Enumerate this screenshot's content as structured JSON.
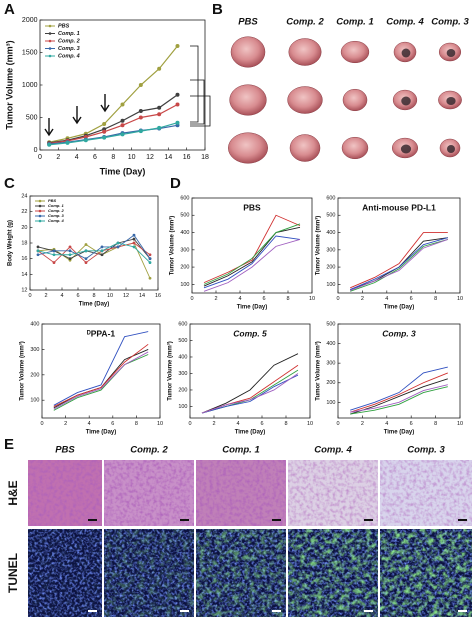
{
  "panels": [
    "A",
    "B",
    "C",
    "D",
    "E"
  ],
  "chart_data": [
    {
      "type": "line",
      "xlabel": "Time (Day)",
      "ylabel": "Tumor Volume (mm³)",
      "legend": "upper left",
      "markers": true,
      "x": [
        1,
        3,
        5,
        7,
        9,
        11,
        13,
        15
      ],
      "xlim": [
        0,
        18
      ],
      "xticks": [
        0,
        2,
        4,
        6,
        8,
        10,
        12,
        14,
        16,
        18
      ],
      "ylim": [
        0,
        2000
      ],
      "yticks": [
        0,
        500,
        1000,
        1500,
        2000
      ],
      "series": [
        {
          "name": "PBS",
          "color": "#a0a040",
          "values": [
            120,
            180,
            250,
            400,
            700,
            1000,
            1250,
            1600
          ]
        },
        {
          "name": "Comp. 1",
          "color": "#404040",
          "values": [
            110,
            150,
            220,
            320,
            450,
            600,
            650,
            850
          ]
        },
        {
          "name": "Comp. 2",
          "color": "#c84848",
          "values": [
            100,
            140,
            200,
            280,
            380,
            500,
            550,
            700
          ]
        },
        {
          "name": "Comp. 3",
          "color": "#3868a8",
          "values": [
            90,
            120,
            160,
            200,
            260,
            300,
            330,
            380
          ]
        },
        {
          "name": "Comp. 4",
          "color": "#30a8a0",
          "values": [
            80,
            110,
            150,
            190,
            240,
            290,
            340,
            420
          ]
        }
      ]
    },
    {
      "type": "line",
      "xlabel": "Time (Day)",
      "ylabel": "Body Weight (g)",
      "legend": "upper left",
      "markers": true,
      "x": [
        1,
        3,
        5,
        7,
        9,
        11,
        13,
        15
      ],
      "xlim": [
        0,
        16
      ],
      "xticks": [
        0,
        2,
        4,
        6,
        8,
        10,
        12,
        14,
        16
      ],
      "ylim": [
        12,
        24
      ],
      "yticks": [
        12,
        14,
        16,
        18,
        20,
        22,
        24
      ],
      "series": [
        {
          "name": "PBS",
          "color": "#a0a040",
          "values": [
            17,
            17.2,
            15.8,
            17.8,
            16.5,
            17.5,
            18,
            13.5
          ]
        },
        {
          "name": "Comp. 1",
          "color": "#404040",
          "values": [
            17.5,
            17,
            16,
            17,
            16.5,
            18,
            18.5,
            16
          ]
        },
        {
          "name": "Comp. 2",
          "color": "#c84848",
          "values": [
            17,
            15.5,
            17.5,
            15.5,
            17,
            17.5,
            18,
            16.5
          ]
        },
        {
          "name": "Comp. 3",
          "color": "#3868a8",
          "values": [
            16.5,
            17,
            17,
            16,
            17.5,
            17.5,
            19,
            16
          ]
        },
        {
          "name": "Comp. 4",
          "color": "#30a8a0",
          "values": [
            17,
            16.5,
            16.5,
            17,
            17,
            18,
            17.5,
            15.5
          ]
        }
      ]
    },
    {
      "type": "line",
      "title": "PBS",
      "xlabel": "Time (Day)",
      "ylabel": "Tumor Volume (mm³)",
      "x": [
        1,
        3,
        5,
        7,
        9
      ],
      "xlim": [
        0,
        10
      ],
      "xticks": [
        0,
        2,
        4,
        6,
        8,
        10
      ],
      "ylim": [
        50,
        600
      ],
      "yticks": [
        100,
        200,
        300,
        400,
        500,
        600
      ],
      "series": [
        {
          "color": "#222222",
          "values": [
            90,
            150,
            230,
            400,
            430
          ]
        },
        {
          "color": "#d03030",
          "values": [
            110,
            170,
            240,
            500,
            440
          ]
        },
        {
          "color": "#30a040",
          "values": [
            100,
            160,
            250,
            400,
            450
          ]
        },
        {
          "color": "#3050c0",
          "values": [
            80,
            130,
            220,
            380,
            360
          ]
        },
        {
          "color": "#a060c0",
          "values": [
            60,
            110,
            200,
            320,
            360
          ]
        }
      ]
    },
    {
      "type": "line",
      "title": "Anti-mouse PD-L1",
      "xlabel": "Time (Day)",
      "ylabel": "Tumor Volume (mm³)",
      "x": [
        1,
        3,
        5,
        7,
        9
      ],
      "xlim": [
        0,
        10
      ],
      "xticks": [
        0,
        2,
        4,
        6,
        8,
        10
      ],
      "ylim": [
        50,
        600
      ],
      "yticks": [
        100,
        200,
        300,
        400,
        500,
        600
      ],
      "series": [
        {
          "color": "#222222",
          "values": [
            70,
            120,
            200,
            350,
            370
          ]
        },
        {
          "color": "#d03030",
          "values": [
            80,
            140,
            220,
            400,
            400
          ]
        },
        {
          "color": "#30a040",
          "values": [
            60,
            110,
            190,
            320,
            360
          ]
        },
        {
          "color": "#3050c0",
          "values": [
            70,
            130,
            200,
            330,
            370
          ]
        },
        {
          "color": "#a060c0",
          "values": [
            65,
            120,
            180,
            310,
            360
          ]
        }
      ]
    },
    {
      "type": "line",
      "title": "ᴰPPA-1",
      "xlabel": "Time (Day)",
      "ylabel": "Tumor Volume (mm³)",
      "x": [
        1,
        3,
        5,
        7,
        9
      ],
      "xlim": [
        0,
        10
      ],
      "xticks": [
        0,
        2,
        4,
        6,
        8,
        10
      ],
      "ylim": [
        30,
        400
      ],
      "yticks": [
        100,
        200,
        300,
        400
      ],
      "series": [
        {
          "color": "#222222",
          "values": [
            70,
            120,
            150,
            260,
            300
          ]
        },
        {
          "color": "#3050c0",
          "values": [
            80,
            130,
            160,
            350,
            370
          ]
        },
        {
          "color": "#30a040",
          "values": [
            60,
            110,
            140,
            240,
            280
          ]
        },
        {
          "color": "#d03030",
          "values": [
            75,
            120,
            150,
            250,
            320
          ]
        },
        {
          "color": "#a060c0",
          "values": [
            65,
            115,
            145,
            240,
            290
          ]
        }
      ]
    },
    {
      "type": "line",
      "title": "Comp. 5",
      "xlabel": "Time (Day)",
      "ylabel": "Tumor Volume (mm³)",
      "x": [
        1,
        3,
        5,
        7,
        9
      ],
      "xlim": [
        0,
        10
      ],
      "xticks": [
        0,
        2,
        4,
        6,
        8,
        10
      ],
      "ylim": [
        30,
        600
      ],
      "yticks": [
        100,
        200,
        300,
        400,
        500,
        600
      ],
      "series": [
        {
          "color": "#222222",
          "values": [
            60,
            120,
            200,
            350,
            420
          ]
        },
        {
          "color": "#d03030",
          "values": [
            60,
            110,
            150,
            250,
            350
          ]
        },
        {
          "color": "#30a040",
          "values": [
            60,
            100,
            140,
            230,
            320
          ]
        },
        {
          "color": "#3050c0",
          "values": [
            60,
            100,
            130,
            220,
            290
          ]
        },
        {
          "color": "#a060c0",
          "values": [
            60,
            110,
            140,
            200,
            300
          ]
        }
      ]
    },
    {
      "type": "line",
      "title": "Comp. 3",
      "xlabel": "Time (Day)",
      "ylabel": "Tumor Volume (mm³)",
      "x": [
        1,
        3,
        5,
        7,
        9
      ],
      "xlim": [
        0,
        10
      ],
      "xticks": [
        0,
        2,
        4,
        6,
        8,
        10
      ],
      "ylim": [
        20,
        500
      ],
      "yticks": [
        100,
        200,
        300,
        400,
        500
      ],
      "series": [
        {
          "color": "#3050c0",
          "values": [
            60,
            100,
            150,
            250,
            280
          ]
        },
        {
          "color": "#d03030",
          "values": [
            50,
            90,
            140,
            200,
            250
          ]
        },
        {
          "color": "#222222",
          "values": [
            40,
            80,
            130,
            180,
            220
          ]
        },
        {
          "color": "#a060c0",
          "values": [
            50,
            70,
            100,
            160,
            190
          ]
        },
        {
          "color": "#30a040",
          "values": [
            40,
            60,
            90,
            150,
            180
          ]
        }
      ]
    }
  ],
  "photos": {
    "columns": [
      "PBS",
      "Comp. 2",
      "Comp. 1",
      "Comp. 4",
      "Comp. 3"
    ]
  },
  "histology": {
    "columns": [
      "PBS",
      "Comp. 2",
      "Comp. 1",
      "Comp. 4",
      "Comp. 3"
    ],
    "rows": [
      "H&E",
      "TUNEL"
    ]
  }
}
